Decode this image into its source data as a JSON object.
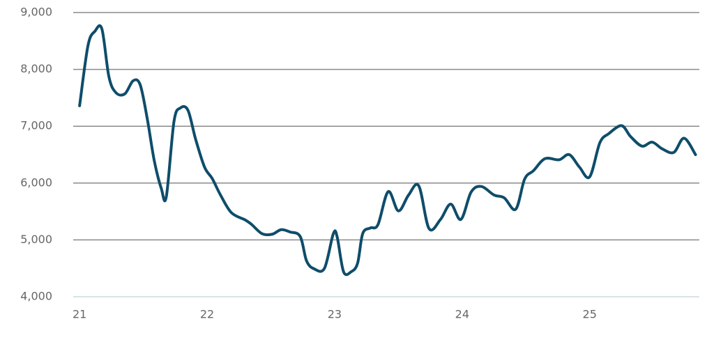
{
  "chart_data": {
    "type": "line",
    "color": "#0e4d6a",
    "grid": true,
    "x": [
      21.0,
      21.066,
      21.12,
      21.175,
      21.23,
      21.285,
      21.355,
      21.42,
      21.475,
      21.53,
      21.585,
      21.64,
      21.68,
      21.74,
      21.79,
      21.85,
      21.91,
      21.98,
      22.04,
      22.105,
      22.19,
      22.3,
      22.35,
      22.43,
      22.51,
      22.58,
      22.65,
      22.73,
      22.78,
      22.84,
      22.92,
      22.99,
      23.02,
      23.07,
      23.13,
      23.18,
      23.22,
      23.28,
      23.34,
      23.42,
      23.5,
      23.58,
      23.66,
      23.74,
      23.83,
      23.91,
      23.99,
      24.07,
      24.15,
      24.25,
      24.33,
      24.42,
      24.49,
      24.56,
      24.65,
      24.76,
      24.84,
      24.92,
      25.0,
      25.08,
      25.15,
      25.25,
      25.32,
      25.41,
      25.49,
      25.57,
      25.66,
      25.74,
      25.83
    ],
    "values": [
      7360,
      8420,
      8670,
      8710,
      7870,
      7590,
      7570,
      7800,
      7730,
      7140,
      6400,
      5910,
      5760,
      7080,
      7320,
      7280,
      6770,
      6280,
      6080,
      5790,
      5480,
      5350,
      5270,
      5110,
      5100,
      5180,
      5140,
      5060,
      4630,
      4490,
      4500,
      5110,
      5050,
      4440,
      4440,
      4590,
      5110,
      5210,
      5270,
      5850,
      5510,
      5790,
      5950,
      5200,
      5360,
      5630,
      5360,
      5840,
      5940,
      5790,
      5740,
      5540,
      6070,
      6220,
      6430,
      6410,
      6500,
      6280,
      6110,
      6710,
      6870,
      7010,
      6820,
      6650,
      6720,
      6600,
      6540,
      6790,
      6500
    ],
    "xlim": [
      20.95,
      25.86
    ],
    "xticks": [
      21,
      22,
      23,
      24,
      25
    ],
    "ylim": [
      4000,
      9000
    ],
    "yticks": [
      {
        "value": 4000,
        "label": "4,000"
      },
      {
        "value": 5000,
        "label": "5,000"
      },
      {
        "value": 6000,
        "label": "6,000"
      },
      {
        "value": 7000,
        "label": "7,000"
      },
      {
        "value": 8000,
        "label": "8,000"
      },
      {
        "value": 9000,
        "label": "9,000"
      }
    ]
  }
}
